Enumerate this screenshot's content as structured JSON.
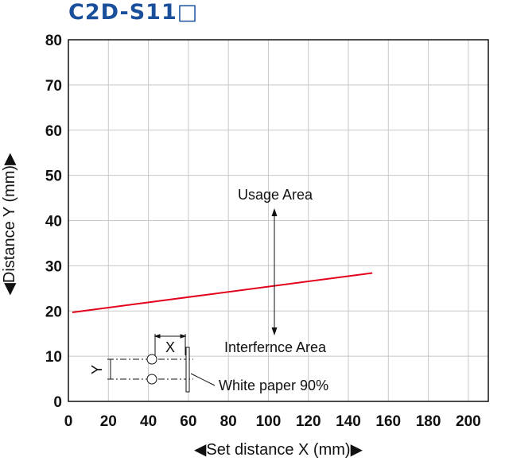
{
  "title": "C2D-S11□",
  "chart_data": {
    "type": "line",
    "xlabel": "◀Set distance X (mm)▶",
    "ylabel": "◀Distance Y (mm)▶",
    "xlim": [
      0,
      210
    ],
    "ylim": [
      0,
      80
    ],
    "x_ticks": [
      0,
      20,
      40,
      60,
      80,
      100,
      120,
      140,
      160,
      180,
      200
    ],
    "y_ticks": [
      0,
      10,
      20,
      30,
      40,
      50,
      60,
      70,
      80
    ],
    "grid": true,
    "series": [
      {
        "x": [
          2,
          152
        ],
        "y": [
          19.7,
          28.4
        ],
        "color": "#e3001b"
      }
    ],
    "annotations": {
      "usage_area": "Usage Area",
      "interference_area": "Interfernce Area",
      "white_paper": "White paper 90%",
      "x_marker": "X",
      "y_marker": "Y"
    }
  }
}
